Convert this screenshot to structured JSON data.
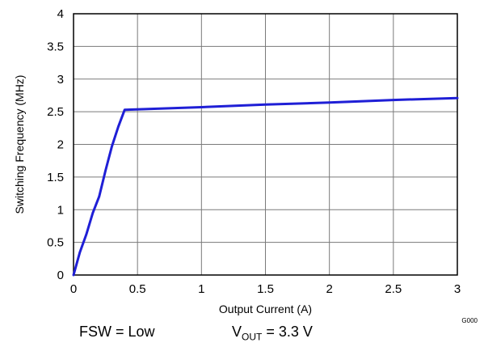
{
  "chart_data": {
    "type": "line",
    "xlabel": "Output Current (A)",
    "ylabel": "Switching Frequency (MHz)",
    "xlim": [
      0,
      3
    ],
    "ylim": [
      0,
      4
    ],
    "x_ticks": [
      "0",
      "0.5",
      "1",
      "1.5",
      "2",
      "2.5",
      "3"
    ],
    "y_ticks": [
      "0",
      "0.5",
      "1",
      "1.5",
      "2",
      "2.5",
      "3",
      "3.5",
      "4"
    ],
    "grid": true,
    "series": [
      {
        "color": "#1f1fd6",
        "points": [
          {
            "x": 0,
            "y": 0
          },
          {
            "x": 0.05,
            "y": 0.35
          },
          {
            "x": 0.1,
            "y": 0.62
          },
          {
            "x": 0.15,
            "y": 0.95
          },
          {
            "x": 0.2,
            "y": 1.2
          },
          {
            "x": 0.25,
            "y": 1.6
          },
          {
            "x": 0.3,
            "y": 1.97
          },
          {
            "x": 0.35,
            "y": 2.27
          },
          {
            "x": 0.4,
            "y": 2.53
          },
          {
            "x": 1.0,
            "y": 2.57
          },
          {
            "x": 1.5,
            "y": 2.61
          },
          {
            "x": 2.0,
            "y": 2.64
          },
          {
            "x": 2.5,
            "y": 2.68
          },
          {
            "x": 3.0,
            "y": 2.71
          }
        ]
      }
    ],
    "figure_code": "G000"
  },
  "conditions": {
    "fsw": "FSW = Low",
    "vout_prefix": "V",
    "vout_sub": "OUT",
    "vout_value": " = 3.3 V"
  }
}
